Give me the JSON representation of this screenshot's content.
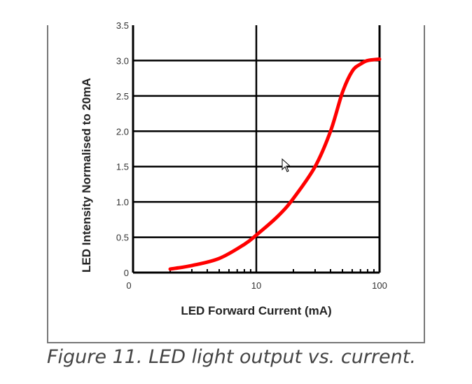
{
  "caption": "Figure 11. LED light output vs. current.",
  "chart_data": {
    "type": "line",
    "title": "",
    "xlabel": "LED Forward Current (mA)",
    "ylabel": "LED Intensity Normalised to 20mA",
    "x_scale": "log",
    "xlim": [
      1,
      100
    ],
    "ylim": [
      0,
      3.5
    ],
    "x_tick_labels": [
      "0",
      "10",
      "100"
    ],
    "y_tick_labels": [
      "0",
      "0.5",
      "1.0",
      "1.5",
      "2.0",
      "2.5",
      "3.0",
      "3.5"
    ],
    "grid": true,
    "series": [
      {
        "color": "#ff0000",
        "x": [
          2,
          3,
          5,
          8,
          10,
          15,
          20,
          30,
          40,
          50,
          60,
          70,
          80,
          100
        ],
        "y": [
          0.05,
          0.1,
          0.2,
          0.4,
          0.53,
          0.8,
          1.05,
          1.5,
          2.0,
          2.55,
          2.85,
          2.95,
          3.0,
          3.02
        ]
      }
    ],
    "colors": {
      "grid": "#000000",
      "curve": "#ff0000"
    }
  }
}
